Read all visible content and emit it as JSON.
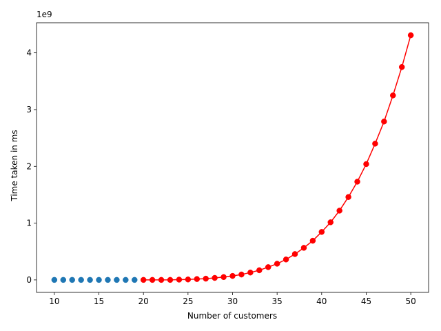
{
  "chart_data": {
    "type": "line",
    "title": "",
    "xlabel": "Number of customers",
    "ylabel": "Time taken in ms",
    "y_offset_label": "1e9",
    "xlim": [
      8.0,
      52.0
    ],
    "ylim": [
      -220000000.0,
      4530000000.0
    ],
    "xticks": [
      10,
      15,
      20,
      25,
      30,
      35,
      40,
      45,
      50
    ],
    "yticks": [
      0,
      1000000000.0,
      2000000000.0,
      3000000000.0,
      4000000000.0
    ],
    "ytick_labels": [
      "0",
      "1",
      "2",
      "3",
      "4"
    ],
    "grid": false,
    "legend": "none",
    "series": [
      {
        "color": "#1f77b4",
        "line": false,
        "marker": "circle",
        "x": [
          10,
          11,
          12,
          13,
          14,
          15,
          16,
          17,
          18,
          19
        ],
        "y": [
          0,
          0,
          0,
          0,
          0,
          0,
          0,
          0,
          0,
          0
        ]
      },
      {
        "color": "#ff0000",
        "line": true,
        "marker": "circle",
        "x": [
          20,
          21,
          22,
          23,
          24,
          25,
          26,
          27,
          28,
          29,
          30,
          31,
          32,
          33,
          34,
          35,
          36,
          37,
          38,
          39,
          40,
          41,
          42,
          43,
          44,
          45,
          46,
          47,
          48,
          49,
          50
        ],
        "y": [
          0,
          0,
          0,
          0,
          5000000,
          8000000,
          15000000,
          22000000,
          35000000,
          50000000,
          70000000,
          95000000,
          130000000,
          170000000,
          225000000,
          285000000,
          360000000,
          455000000,
          565000000,
          690000000,
          845000000,
          1015000000,
          1220000000,
          1460000000,
          1730000000,
          2040000000,
          2400000000,
          2790000000,
          3250000000,
          3750000000,
          4310000000
        ]
      }
    ]
  }
}
